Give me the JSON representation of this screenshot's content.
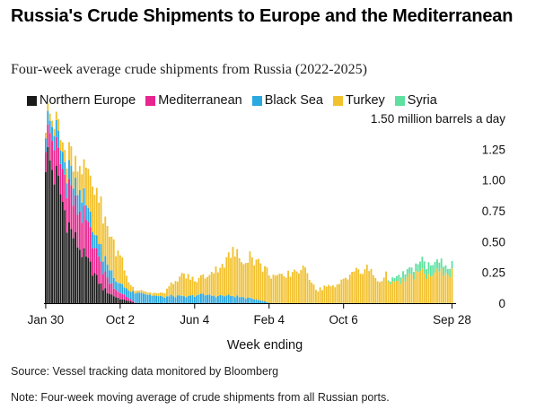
{
  "chart_data": {
    "type": "area",
    "stacked": true,
    "title": "Russia's Crude Shipments to Europe and the Mediterranean",
    "subtitle": "Four-week average crude shipments from Russia (2022-2025)",
    "ylabel": "1.50 million barrels a day",
    "xlabel": "Week ending",
    "ylim": [
      0,
      1.5
    ],
    "yticks": [
      {
        "value": 1.5,
        "label": "1.50 million barrels a day"
      },
      {
        "value": 1.25,
        "label": "1.25"
      },
      {
        "value": 1.0,
        "label": "1.00"
      },
      {
        "value": 0.75,
        "label": "0.75"
      },
      {
        "value": 0.5,
        "label": "0.50"
      },
      {
        "value": 0.25,
        "label": "0.25"
      },
      {
        "value": 0,
        "label": "0"
      }
    ],
    "xticks": [
      {
        "index": 0,
        "label": "Jan 30"
      },
      {
        "index": 35,
        "label": "Oct 2"
      },
      {
        "index": 70,
        "label": "Jun 4"
      },
      {
        "index": 105,
        "label": "Feb 4"
      },
      {
        "index": 140,
        "label": "Oct 6"
      },
      {
        "index": 191,
        "label": "Sep 28"
      }
    ],
    "legend_position": "top-left",
    "grid": false,
    "colors": {
      "Northern Europe": "#1a1a1a",
      "Mediterranean": "#e8258f",
      "Black Sea": "#2aa8e0",
      "Turkey": "#f2c12e",
      "Syria": "#5fe0a0"
    },
    "series": [
      {
        "name": "Northern Europe",
        "knots": [
          [
            0,
            1.2
          ],
          [
            3,
            1.1
          ],
          [
            6,
            0.95
          ],
          [
            9,
            0.75
          ],
          [
            12,
            0.58
          ],
          [
            15,
            0.48
          ],
          [
            18,
            0.38
          ],
          [
            21,
            0.3
          ],
          [
            24,
            0.2
          ],
          [
            27,
            0.12
          ],
          [
            30,
            0.08
          ],
          [
            33,
            0.05
          ],
          [
            36,
            0.03
          ],
          [
            39,
            0.02
          ],
          [
            42,
            0
          ],
          [
            191,
            0
          ]
        ]
      },
      {
        "name": "Mediterranean",
        "knots": [
          [
            0,
            0.2
          ],
          [
            3,
            0.25
          ],
          [
            6,
            0.22
          ],
          [
            9,
            0.28
          ],
          [
            12,
            0.32
          ],
          [
            15,
            0.25
          ],
          [
            18,
            0.3
          ],
          [
            21,
            0.28
          ],
          [
            24,
            0.22
          ],
          [
            27,
            0.15
          ],
          [
            30,
            0.1
          ],
          [
            33,
            0.06
          ],
          [
            36,
            0.04
          ],
          [
            40,
            0.02
          ],
          [
            43,
            0
          ],
          [
            191,
            0
          ]
        ]
      },
      {
        "name": "Black Sea",
        "knots": [
          [
            0,
            0.12
          ],
          [
            3,
            0.1
          ],
          [
            6,
            0.13
          ],
          [
            9,
            0.12
          ],
          [
            12,
            0.15
          ],
          [
            15,
            0.18
          ],
          [
            18,
            0.16
          ],
          [
            21,
            0.12
          ],
          [
            24,
            0.12
          ],
          [
            27,
            0.12
          ],
          [
            30,
            0.1
          ],
          [
            33,
            0.08
          ],
          [
            36,
            0.07
          ],
          [
            40,
            0.06
          ],
          [
            43,
            0.1
          ],
          [
            48,
            0.07
          ],
          [
            55,
            0.05
          ],
          [
            60,
            0.06
          ],
          [
            66,
            0.05
          ],
          [
            72,
            0.07
          ],
          [
            80,
            0.06
          ],
          [
            88,
            0.06
          ],
          [
            95,
            0.04
          ],
          [
            100,
            0.03
          ],
          [
            104,
            0.01
          ],
          [
            106,
            0
          ],
          [
            191,
            0
          ]
        ]
      },
      {
        "name": "Turkey",
        "knots": [
          [
            0,
            0.05
          ],
          [
            3,
            0.06
          ],
          [
            6,
            0.08
          ],
          [
            9,
            0.1
          ],
          [
            12,
            0.15
          ],
          [
            15,
            0.2
          ],
          [
            18,
            0.25
          ],
          [
            21,
            0.3
          ],
          [
            24,
            0.35
          ],
          [
            27,
            0.32
          ],
          [
            30,
            0.3
          ],
          [
            33,
            0.25
          ],
          [
            36,
            0.2
          ],
          [
            38,
            0.1
          ],
          [
            40,
            0.05
          ],
          [
            42,
            0.02
          ],
          [
            45,
            0.02
          ],
          [
            50,
            0.02
          ],
          [
            55,
            0.03
          ],
          [
            60,
            0.1
          ],
          [
            65,
            0.18
          ],
          [
            70,
            0.12
          ],
          [
            75,
            0.15
          ],
          [
            80,
            0.22
          ],
          [
            85,
            0.28
          ],
          [
            88,
            0.36
          ],
          [
            92,
            0.3
          ],
          [
            96,
            0.35
          ],
          [
            100,
            0.3
          ],
          [
            104,
            0.25
          ],
          [
            108,
            0.22
          ],
          [
            112,
            0.2
          ],
          [
            116,
            0.26
          ],
          [
            120,
            0.28
          ],
          [
            124,
            0.22
          ],
          [
            128,
            0.1
          ],
          [
            132,
            0.15
          ],
          [
            136,
            0.12
          ],
          [
            140,
            0.2
          ],
          [
            144,
            0.26
          ],
          [
            148,
            0.25
          ],
          [
            152,
            0.28
          ],
          [
            156,
            0.18
          ],
          [
            160,
            0.22
          ],
          [
            164,
            0.15
          ],
          [
            168,
            0.18
          ],
          [
            172,
            0.22
          ],
          [
            176,
            0.25
          ],
          [
            180,
            0.22
          ],
          [
            184,
            0.24
          ],
          [
            188,
            0.26
          ],
          [
            191,
            0.25
          ]
        ]
      },
      {
        "name": "Syria",
        "knots": [
          [
            0,
            0
          ],
          [
            160,
            0
          ],
          [
            164,
            0.04
          ],
          [
            168,
            0.06
          ],
          [
            172,
            0.05
          ],
          [
            176,
            0.08
          ],
          [
            180,
            0.1
          ],
          [
            184,
            0.08
          ],
          [
            188,
            0.06
          ],
          [
            191,
            0.06
          ]
        ]
      }
    ]
  },
  "footer": {
    "source": "Source: Vessel tracking data monitored by Bloomberg",
    "note": "Note: Four-week moving average of crude shipments from all Russian ports."
  }
}
